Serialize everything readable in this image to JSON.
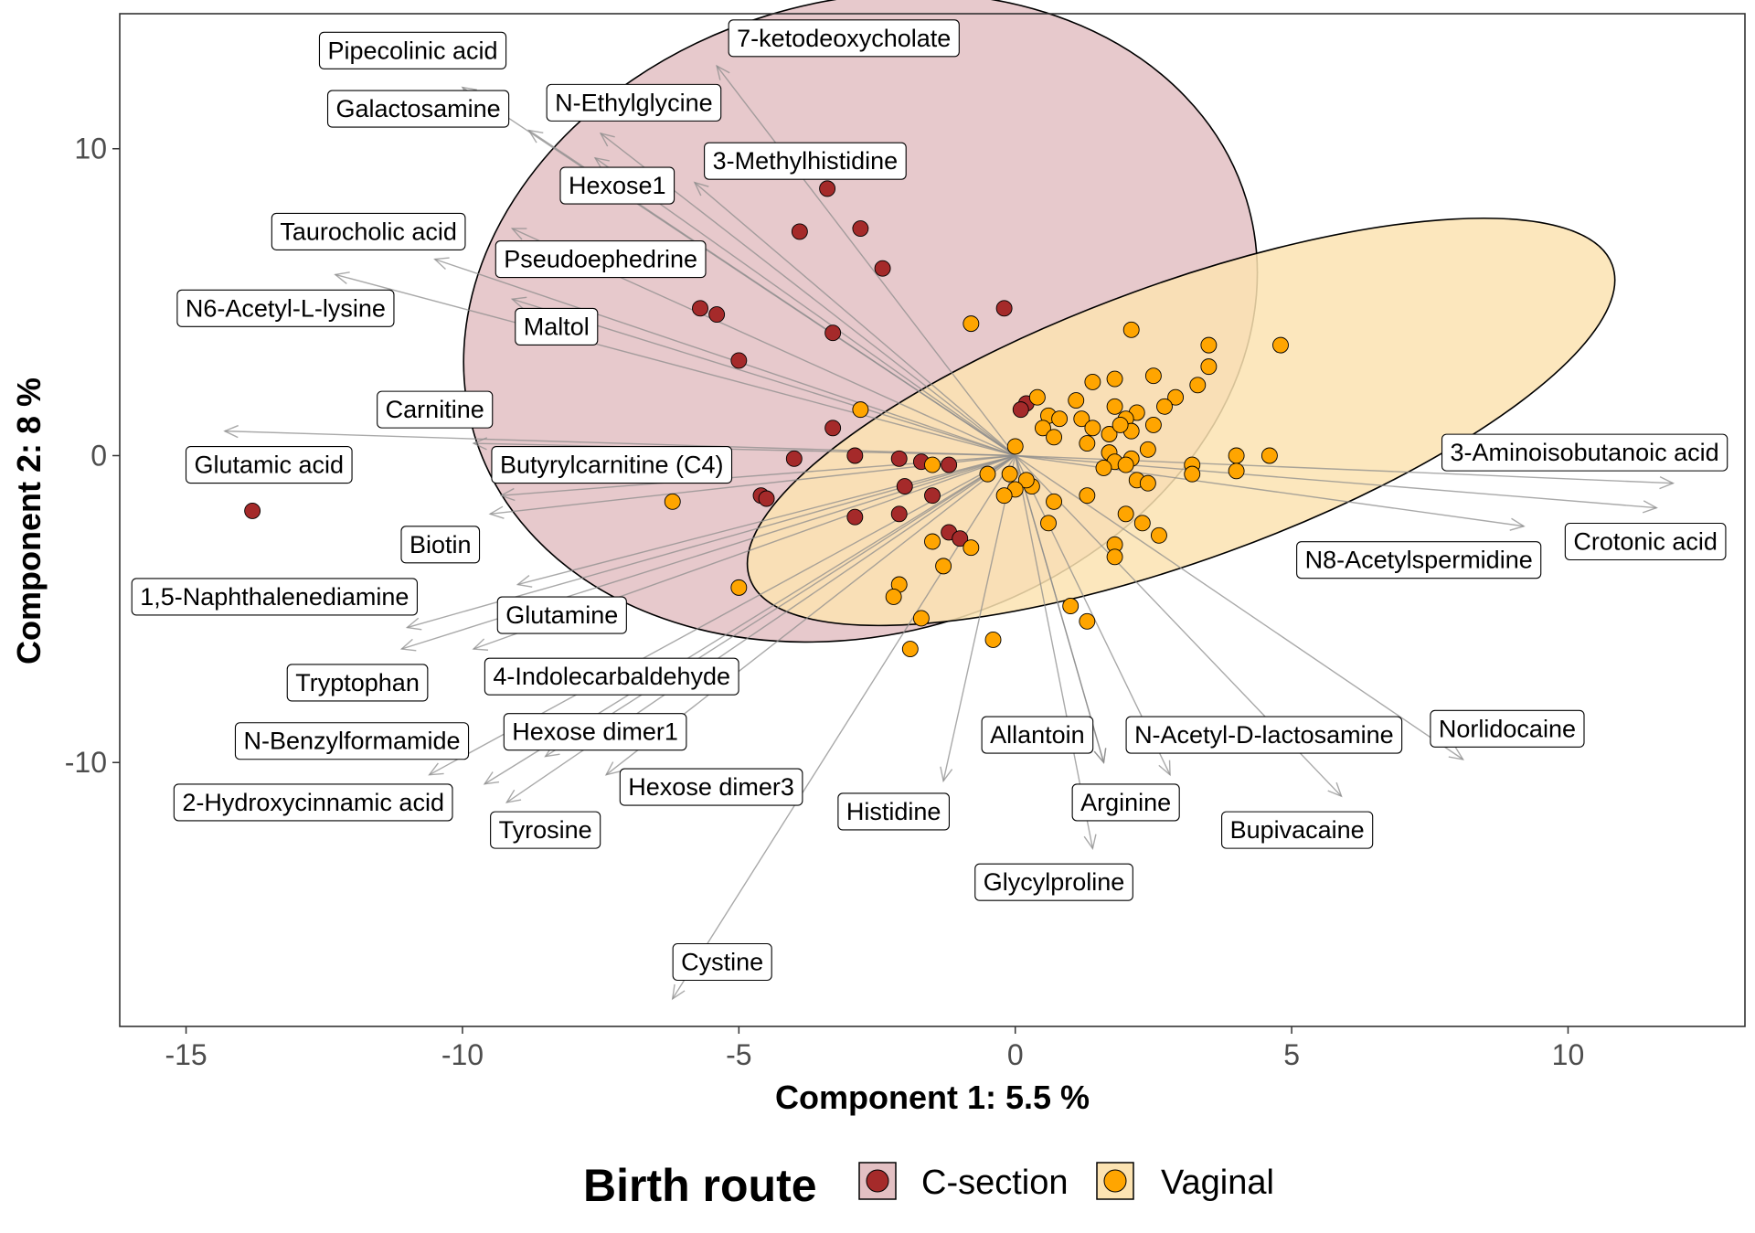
{
  "chart_data": {
    "type": "scatter",
    "subtype": "pca-biplot",
    "xlabel": "Component 1: 5.5 %",
    "ylabel": "Component 2: 8 %",
    "xlim": [
      -16.2,
      13.2
    ],
    "ylim": [
      -18.6,
      14.4
    ],
    "x_ticks": [
      -15,
      -10,
      -5,
      0,
      5,
      10
    ],
    "y_ticks": [
      -10,
      0,
      10
    ],
    "grid": false,
    "legend": {
      "title": "Birth route",
      "position": "bottom",
      "entries": [
        {
          "label": "C-section",
          "color": "#a52a2a",
          "fill": "#e3c0c3"
        },
        {
          "label": "Vaginal",
          "color": "#ffa500",
          "fill": "#fce3b2"
        }
      ]
    },
    "series": [
      {
        "name": "C-section",
        "color": "#a52a2a",
        "ellipse": {
          "cx": -2.8,
          "cy": 4.5,
          "rx": 7.3,
          "ry": 10.3,
          "angle": 17
        },
        "points": [
          [
            -3.4,
            8.7
          ],
          [
            -2.8,
            7.4
          ],
          [
            -3.9,
            7.3
          ],
          [
            -2.4,
            6.1
          ],
          [
            -5.7,
            4.8
          ],
          [
            -5.4,
            4.6
          ],
          [
            -0.2,
            4.8
          ],
          [
            -3.3,
            4.0
          ],
          [
            -5.0,
            3.1
          ],
          [
            -3.3,
            0.9
          ],
          [
            -2.9,
            0.0
          ],
          [
            -4.0,
            -0.1
          ],
          [
            -4.6,
            -1.3
          ],
          [
            -4.5,
            -1.4
          ],
          [
            -13.8,
            -1.8
          ],
          [
            -2.1,
            -0.1
          ],
          [
            -1.7,
            -0.2
          ],
          [
            -1.2,
            -0.3
          ],
          [
            -2.0,
            -1.0
          ],
          [
            -1.5,
            -1.3
          ],
          [
            -2.9,
            -2.0
          ],
          [
            -2.1,
            -1.9
          ],
          [
            -1.2,
            -2.5
          ],
          [
            -1.0,
            -2.7
          ],
          [
            0.2,
            1.7
          ],
          [
            0.1,
            1.5
          ]
        ]
      },
      {
        "name": "Vaginal",
        "color": "#ffa500",
        "ellipse": {
          "cx": 3.0,
          "cy": 1.1,
          "rx": 8.3,
          "ry": 4.5,
          "angle": 20
        },
        "points": [
          [
            2.1,
            4.1
          ],
          [
            -0.8,
            4.3
          ],
          [
            4.8,
            3.6
          ],
          [
            3.5,
            3.6
          ],
          [
            3.5,
            2.9
          ],
          [
            2.5,
            2.6
          ],
          [
            1.4,
            2.4
          ],
          [
            1.8,
            2.5
          ],
          [
            3.3,
            2.3
          ],
          [
            2.9,
            1.9
          ],
          [
            2.7,
            1.6
          ],
          [
            0.4,
            1.9
          ],
          [
            1.1,
            1.8
          ],
          [
            1.8,
            1.6
          ],
          [
            2.2,
            1.4
          ],
          [
            2.0,
            1.2
          ],
          [
            0.6,
            1.3
          ],
          [
            0.8,
            1.2
          ],
          [
            1.2,
            1.2
          ],
          [
            1.4,
            0.9
          ],
          [
            2.1,
            0.8
          ],
          [
            2.5,
            1.0
          ],
          [
            0.5,
            0.9
          ],
          [
            1.7,
            0.7
          ],
          [
            0.7,
            0.6
          ],
          [
            1.9,
            1.0
          ],
          [
            1.3,
            0.4
          ],
          [
            0.0,
            0.3
          ],
          [
            2.4,
            0.2
          ],
          [
            1.7,
            0.1
          ],
          [
            2.1,
            -0.1
          ],
          [
            1.8,
            -0.2
          ],
          [
            2.0,
            -0.3
          ],
          [
            3.2,
            -0.3
          ],
          [
            4.0,
            0.0
          ],
          [
            4.6,
            0.0
          ],
          [
            4.0,
            -0.5
          ],
          [
            3.2,
            -0.6
          ],
          [
            2.2,
            -0.8
          ],
          [
            2.4,
            -0.9
          ],
          [
            1.6,
            -0.4
          ],
          [
            0.3,
            -1.0
          ],
          [
            0.2,
            -0.8
          ],
          [
            -0.5,
            -0.6
          ],
          [
            -0.1,
            -0.6
          ],
          [
            0.0,
            -1.1
          ],
          [
            -0.2,
            -1.3
          ],
          [
            0.7,
            -1.5
          ],
          [
            1.3,
            -1.3
          ],
          [
            2.0,
            -1.9
          ],
          [
            2.3,
            -2.2
          ],
          [
            2.6,
            -2.6
          ],
          [
            1.8,
            -2.9
          ],
          [
            0.6,
            -2.2
          ],
          [
            -1.5,
            -0.3
          ],
          [
            -0.8,
            -3.0
          ],
          [
            -1.3,
            -3.6
          ],
          [
            -1.5,
            -2.8
          ],
          [
            -2.1,
            -4.2
          ],
          [
            -2.2,
            -4.6
          ],
          [
            -1.7,
            -5.3
          ],
          [
            -1.9,
            -6.3
          ],
          [
            -0.4,
            -6.0
          ],
          [
            1.0,
            -4.9
          ],
          [
            1.3,
            -5.4
          ],
          [
            1.8,
            -3.3
          ],
          [
            -6.2,
            -1.5
          ],
          [
            -5.0,
            -4.3
          ],
          [
            -2.8,
            1.5
          ]
        ]
      }
    ],
    "loadings": [
      {
        "label": "Pipecolinic acid",
        "x": -10.0,
        "y": 12.0,
        "lx": -10.9,
        "ly": 13.2
      },
      {
        "label": "Galactosamine",
        "x": -8.8,
        "y": 10.6,
        "lx": -10.8,
        "ly": 11.3
      },
      {
        "label": "7-ketodeoxycholate",
        "x": -5.4,
        "y": 12.7,
        "lx": -3.1,
        "ly": 13.6
      },
      {
        "label": "N-Ethylglycine",
        "x": -7.5,
        "y": 10.5,
        "lx": -6.9,
        "ly": 11.5
      },
      {
        "label": "3-Methylhistidine",
        "x": -5.8,
        "y": 8.9,
        "lx": -3.8,
        "ly": 9.6
      },
      {
        "label": "Hexose1",
        "x": -7.6,
        "y": 9.7,
        "lx": -7.2,
        "ly": 8.8
      },
      {
        "label": "Taurocholic acid",
        "x": -9.1,
        "y": 7.4,
        "lx": -11.7,
        "ly": 7.3
      },
      {
        "label": "Pseudoephedrine",
        "x": -10.5,
        "y": 6.4,
        "lx": -7.5,
        "ly": 6.4
      },
      {
        "label": "N6-Acetyl-L-lysine",
        "x": -12.3,
        "y": 5.9,
        "lx": -13.2,
        "ly": 4.8
      },
      {
        "label": "Maltol",
        "x": -9.1,
        "y": 5.1,
        "lx": -8.3,
        "ly": 4.2
      },
      {
        "label": "Carnitine",
        "x": -9.8,
        "y": 0.4,
        "lx": -10.5,
        "ly": 1.5
      },
      {
        "label": "Glutamic acid",
        "x": -14.3,
        "y": 0.8,
        "lx": -13.5,
        "ly": -0.3
      },
      {
        "label": "Butyrylcarnitine (C4)",
        "x": -9.3,
        "y": -1.3,
        "lx": -7.3,
        "ly": -0.3
      },
      {
        "label": "Biotin",
        "x": -9.5,
        "y": -1.9,
        "lx": -10.4,
        "ly": -2.9
      },
      {
        "label": "1,5-Naphthalenediamine",
        "x": -11.0,
        "y": -5.6,
        "lx": -13.4,
        "ly": -4.6
      },
      {
        "label": "Glutamine",
        "x": -9.0,
        "y": -4.2,
        "lx": -8.2,
        "ly": -5.2
      },
      {
        "label": "Tryptophan",
        "x": -11.1,
        "y": -6.3,
        "lx": -11.9,
        "ly": -7.4
      },
      {
        "label": "4-Indolecarbaldehyde",
        "x": -9.8,
        "y": -6.3,
        "lx": -7.3,
        "ly": -7.2
      },
      {
        "label": "N-Benzylformamide",
        "x": -10.6,
        "y": -10.4,
        "lx": -12.0,
        "ly": -9.3
      },
      {
        "label": "Hexose dimer1",
        "x": -8.5,
        "y": -9.8,
        "lx": -7.6,
        "ly": -9.0
      },
      {
        "label": "2-Hydroxycinnamic acid",
        "x": -9.6,
        "y": -10.7,
        "lx": -12.7,
        "ly": -11.3
      },
      {
        "label": "Tyrosine",
        "x": -9.2,
        "y": -11.3,
        "lx": -8.5,
        "ly": -12.2
      },
      {
        "label": "Hexose dimer3",
        "x": -7.4,
        "y": -10.4,
        "lx": -5.5,
        "ly": -10.8
      },
      {
        "label": "Cystine",
        "x": -6.2,
        "y": -17.7,
        "lx": -5.3,
        "ly": -16.5
      },
      {
        "label": "Histidine",
        "x": -1.3,
        "y": -10.6,
        "lx": -2.2,
        "ly": -11.6
      },
      {
        "label": "Allantoin",
        "x": 1.6,
        "y": -10.0,
        "lx": 0.4,
        "ly": -9.1
      },
      {
        "label": "Glycylproline",
        "x": 1.4,
        "y": -12.8,
        "lx": 0.7,
        "ly": -13.9
      },
      {
        "label": "Arginine",
        "x": 1.6,
        "y": -10.0,
        "lx": 2.0,
        "ly": -11.3
      },
      {
        "label": "N-Acetyl-D-lactosamine",
        "x": 2.8,
        "y": -10.4,
        "lx": 4.5,
        "ly": -9.1
      },
      {
        "label": "Bupivacaine",
        "x": 5.9,
        "y": -11.1,
        "lx": 5.1,
        "ly": -12.2
      },
      {
        "label": "Norlidocaine",
        "x": 8.1,
        "y": -9.9,
        "lx": 8.9,
        "ly": -8.9
      },
      {
        "label": "3-Aminoisobutanoic acid",
        "x": 11.9,
        "y": -0.9,
        "lx": 10.3,
        "ly": 0.1
      },
      {
        "label": "Crotonic acid",
        "x": 11.6,
        "y": -1.7,
        "lx": 11.4,
        "ly": -2.8
      },
      {
        "label": "N8-Acetylspermidine",
        "x": 9.2,
        "y": -2.3,
        "lx": 7.3,
        "ly": -3.4
      }
    ]
  }
}
